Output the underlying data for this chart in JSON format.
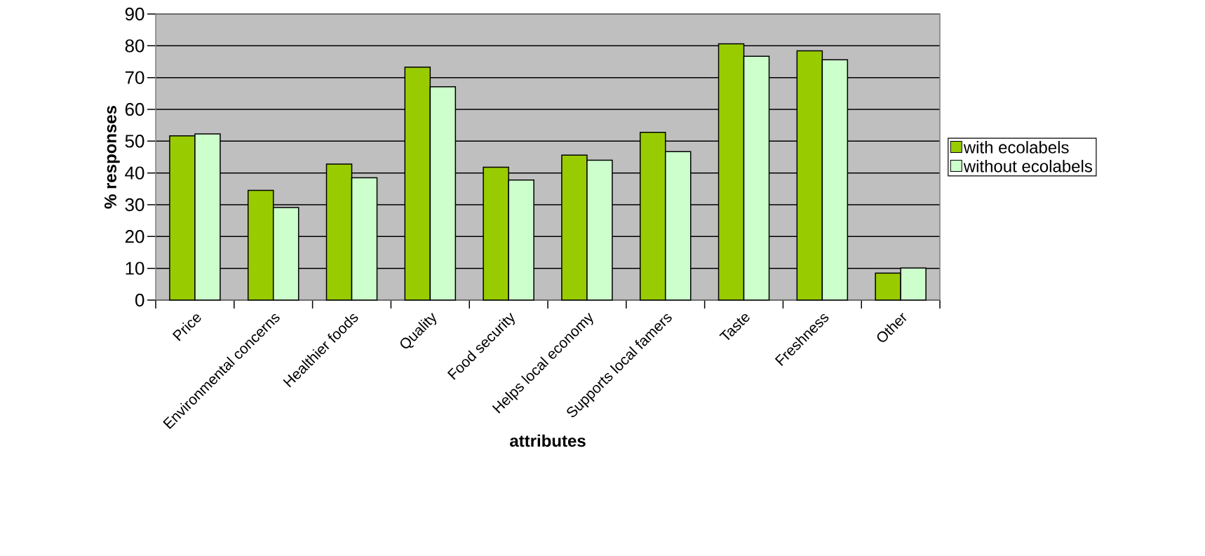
{
  "chart_data": {
    "type": "bar",
    "xlabel": "attributes",
    "ylabel": "% responses",
    "categories": [
      "Price",
      "Environmental concerns",
      "Healthier foods",
      "Quality",
      "Food security",
      "Helps local economy",
      "Supports local famers",
      "Taste",
      "Freshness",
      "Other"
    ],
    "series": [
      {
        "name": "with ecolabels",
        "color": "#99cc00",
        "values": [
          51.7,
          34.5,
          42.8,
          73.3,
          41.8,
          45.6,
          52.8,
          80.6,
          78.4,
          8.5
        ]
      },
      {
        "name": "without ecolabels",
        "color": "#ccffcc",
        "values": [
          52.3,
          29.1,
          38.5,
          67.1,
          37.8,
          44.0,
          46.7,
          76.7,
          75.6,
          10.1
        ]
      }
    ],
    "ylim": [
      0,
      90
    ],
    "yticks": [
      0,
      10,
      20,
      30,
      40,
      50,
      60,
      70,
      80,
      90
    ],
    "grid": "y",
    "legend": "right"
  }
}
